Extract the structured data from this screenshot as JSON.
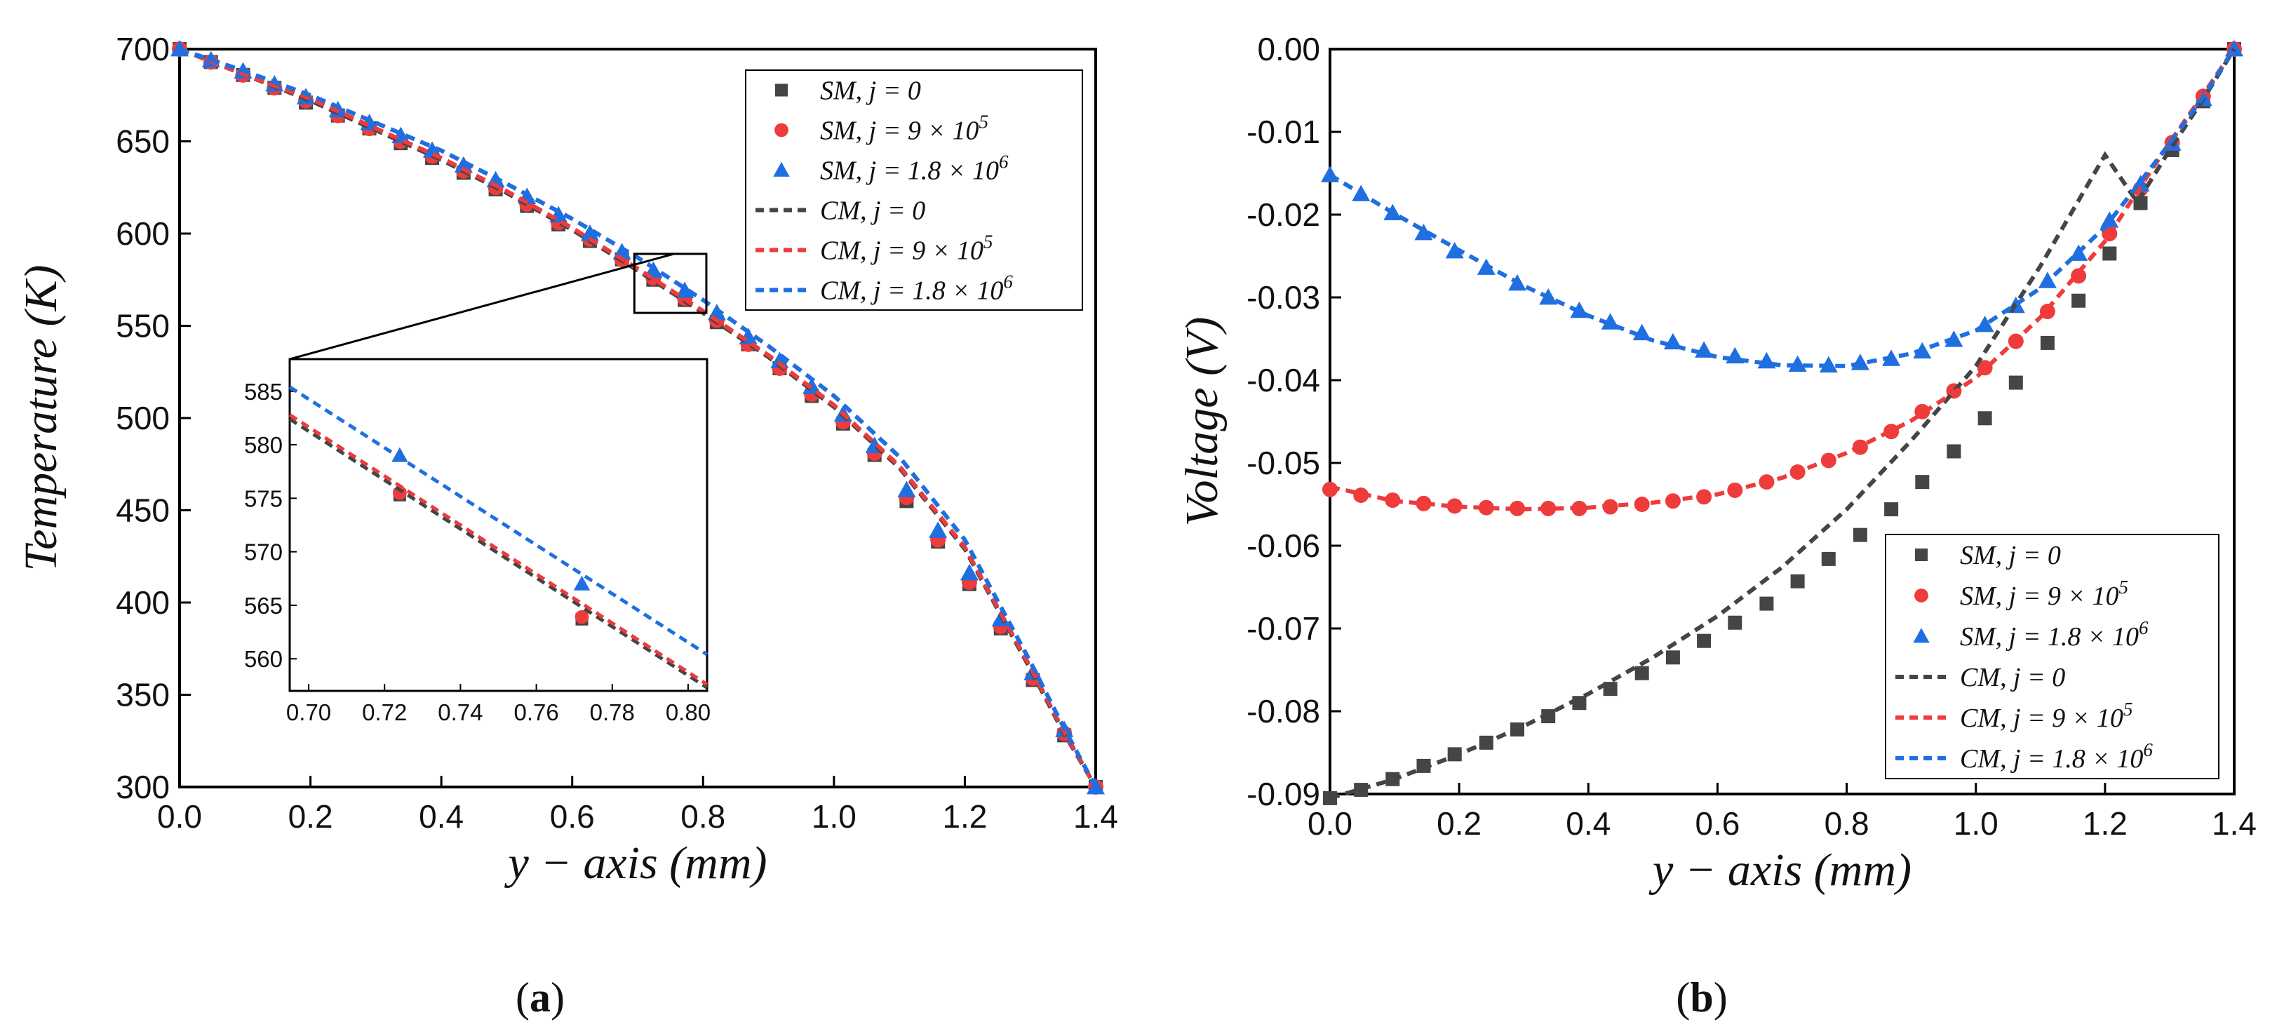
{
  "chart_data": [
    {
      "type": "line",
      "panel": "a",
      "caption": "a",
      "xlabel": "y − axis (mm)",
      "ylabel": "Temperature (K)",
      "xlim": [
        0.0,
        1.4
      ],
      "ylim": [
        300,
        700
      ],
      "xticks": [
        "0.0",
        "0.2",
        "0.4",
        "0.6",
        "0.8",
        "1.0",
        "1.2",
        "1.4"
      ],
      "yticks": [
        "300",
        "350",
        "400",
        "450",
        "500",
        "550",
        "600",
        "650",
        "700"
      ],
      "legend_position": "top-right",
      "legend": [
        "SM, j = 0",
        "SM, j = 9 × 10⁵",
        "SM, j = 1.8 × 10⁶",
        "CM, j = 0",
        "CM, j = 9 × 10⁵",
        "CM, j = 1.8 × 10⁶"
      ],
      "series": [
        {
          "name": "SM, j = 0",
          "style": "marker-square",
          "color": "#454545",
          "x": [
            0.0,
            0.048,
            0.097,
            0.145,
            0.193,
            0.242,
            0.29,
            0.338,
            0.386,
            0.434,
            0.483,
            0.531,
            0.579,
            0.627,
            0.676,
            0.724,
            0.772,
            0.821,
            0.869,
            0.917,
            0.966,
            1.014,
            1.062,
            1.111,
            1.159,
            1.207,
            1.255,
            1.304,
            1.352,
            1.4
          ],
          "y": [
            700,
            693,
            686,
            679,
            671,
            664,
            657,
            649,
            641,
            633,
            624,
            615,
            605,
            596,
            586,
            575,
            564,
            552,
            540,
            527,
            512,
            497,
            480,
            455,
            433,
            410,
            386,
            358,
            328,
            300
          ]
        },
        {
          "name": "SM, j = 9 × 10⁵",
          "style": "marker-circle",
          "color": "#ee3b3b",
          "x": [
            0.0,
            0.048,
            0.097,
            0.145,
            0.193,
            0.242,
            0.29,
            0.338,
            0.386,
            0.434,
            0.483,
            0.531,
            0.579,
            0.627,
            0.676,
            0.724,
            0.772,
            0.821,
            0.869,
            0.917,
            0.966,
            1.014,
            1.062,
            1.111,
            1.159,
            1.207,
            1.255,
            1.304,
            1.352,
            1.4
          ],
          "y": [
            700,
            693,
            686,
            679,
            672,
            664,
            657,
            650,
            642,
            634,
            625,
            616,
            606,
            597,
            586,
            576,
            565,
            553,
            540,
            527,
            513,
            498,
            481,
            457,
            434,
            411,
            387,
            359,
            329,
            300
          ]
        },
        {
          "name": "SM, j = 1.8 × 10⁶",
          "style": "marker-triangle",
          "color": "#1f6fe0",
          "x": [
            0.0,
            0.048,
            0.097,
            0.145,
            0.193,
            0.242,
            0.29,
            0.338,
            0.386,
            0.434,
            0.483,
            0.531,
            0.579,
            0.627,
            0.676,
            0.724,
            0.772,
            0.821,
            0.869,
            0.917,
            0.966,
            1.014,
            1.062,
            1.111,
            1.159,
            1.207,
            1.255,
            1.304,
            1.352,
            1.4
          ],
          "y": [
            700,
            694,
            688,
            681,
            674,
            667,
            660,
            653,
            645,
            637,
            629,
            620,
            610,
            600,
            590,
            580,
            569,
            557,
            544,
            531,
            517,
            502,
            485,
            461,
            439,
            416,
            391,
            362,
            331,
            300
          ]
        },
        {
          "name": "CM, j = 0",
          "style": "dashed",
          "color": "#454545",
          "x": [
            0.0,
            0.1,
            0.2,
            0.3,
            0.4,
            0.5,
            0.6,
            0.7,
            0.8,
            0.9,
            1.0,
            1.1,
            1.2,
            1.3,
            1.35,
            1.4
          ],
          "y": [
            700,
            686,
            672,
            656,
            640,
            622,
            602,
            580,
            557,
            533,
            506,
            473,
            429,
            364,
            330,
            300
          ]
        },
        {
          "name": "CM, j = 9 × 10⁵",
          "style": "dashed",
          "color": "#ee3b3b",
          "x": [
            0.0,
            0.1,
            0.2,
            0.3,
            0.4,
            0.5,
            0.6,
            0.7,
            0.8,
            0.9,
            1.0,
            1.1,
            1.2,
            1.3,
            1.35,
            1.4
          ],
          "y": [
            700,
            686,
            673,
            657,
            641,
            623,
            603,
            581,
            558,
            534,
            507,
            474,
            430,
            365,
            331,
            300
          ]
        },
        {
          "name": "CM, j = 1.8 × 10⁶",
          "style": "dashed",
          "color": "#1f6fe0",
          "x": [
            0.0,
            0.1,
            0.2,
            0.3,
            0.4,
            0.5,
            0.6,
            0.7,
            0.8,
            0.9,
            1.0,
            1.1,
            1.2,
            1.3,
            1.35,
            1.4
          ],
          "y": [
            700,
            688,
            675,
            660,
            645,
            627,
            608,
            587,
            564,
            539,
            512,
            479,
            434,
            368,
            333,
            300
          ]
        }
      ],
      "zoom_box": {
        "xlim": [
          0.695,
          0.805
        ],
        "ylim": [
          557,
          589
        ]
      },
      "inset": {
        "xlim": [
          0.695,
          0.805
        ],
        "ylim": [
          557,
          588
        ],
        "xticks": [
          "0.70",
          "0.72",
          "0.74",
          "0.76",
          "0.78",
          "0.80"
        ],
        "yticks": [
          "560",
          "565",
          "570",
          "575",
          "580",
          "585"
        ],
        "series": [
          {
            "name": "SM, j = 0",
            "style": "marker-square",
            "color": "#454545",
            "x": [
              0.724,
              0.772
            ],
            "y": [
              575.3,
              563.7
            ]
          },
          {
            "name": "SM, j = 9 × 10⁵",
            "style": "marker-circle",
            "color": "#ee3b3b",
            "x": [
              0.724,
              0.772
            ],
            "y": [
              575.5,
              563.9
            ]
          },
          {
            "name": "SM, j = 1.8 × 10⁶",
            "style": "marker-triangle",
            "color": "#1f6fe0",
            "x": [
              0.724,
              0.772
            ],
            "y": [
              579.0,
              567.0
            ]
          },
          {
            "name": "CM, j = 0",
            "style": "dashed",
            "color": "#454545",
            "x": [
              0.695,
              0.805
            ],
            "y": [
              582.4,
              557.3
            ]
          },
          {
            "name": "CM, j = 9 × 10⁵",
            "style": "dashed",
            "color": "#ee3b3b",
            "x": [
              0.695,
              0.805
            ],
            "y": [
              582.8,
              557.6
            ]
          },
          {
            "name": "CM, j = 1.8 × 10⁶",
            "style": "dashed",
            "color": "#1f6fe0",
            "x": [
              0.695,
              0.805
            ],
            "y": [
              585.4,
              560.4
            ]
          }
        ]
      }
    },
    {
      "type": "line",
      "panel": "b",
      "caption": "b",
      "xlabel": "y − axis (mm)",
      "ylabel": "Voltage (V)",
      "xlim": [
        0.0,
        1.4
      ],
      "ylim": [
        -0.09,
        0.0
      ],
      "xticks": [
        "0.0",
        "0.2",
        "0.4",
        "0.6",
        "0.8",
        "1.0",
        "1.2",
        "1.4"
      ],
      "yticks": [
        "-0.09",
        "-0.08",
        "-0.07",
        "-0.06",
        "-0.05",
        "-0.04",
        "-0.03",
        "-0.02",
        "-0.01",
        "0.00"
      ],
      "legend_position": "bottom-right",
      "legend": [
        "SM, j = 0",
        "SM, j = 9 × 10⁵",
        "SM, j = 1.8 × 10⁶",
        "CM, j = 0",
        "CM, j = 9 × 10⁵",
        "CM, j = 1.8 × 10⁶"
      ],
      "series": [
        {
          "name": "SM, j = 0",
          "style": "marker-square",
          "color": "#454545",
          "x": [
            0.0,
            0.048,
            0.097,
            0.145,
            0.193,
            0.242,
            0.29,
            0.338,
            0.386,
            0.434,
            0.483,
            0.531,
            0.579,
            0.627,
            0.676,
            0.724,
            0.772,
            0.821,
            0.869,
            0.917,
            0.966,
            1.014,
            1.062,
            1.111,
            1.159,
            1.207,
            1.255,
            1.304,
            1.352,
            1.4
          ],
          "y": [
            -0.0905,
            -0.0895,
            -0.0882,
            -0.0866,
            -0.0852,
            -0.0838,
            -0.0822,
            -0.0806,
            -0.079,
            -0.0773,
            -0.0754,
            -0.0735,
            -0.0715,
            -0.0693,
            -0.067,
            -0.0643,
            -0.0616,
            -0.0587,
            -0.0556,
            -0.0523,
            -0.0486,
            -0.0446,
            -0.0403,
            -0.0355,
            -0.0304,
            -0.0247,
            -0.0186,
            -0.0122,
            -0.0063,
            0.0
          ]
        },
        {
          "name": "SM, j = 9 × 10⁵",
          "style": "marker-circle",
          "color": "#ee3b3b",
          "x": [
            0.0,
            0.048,
            0.097,
            0.145,
            0.193,
            0.242,
            0.29,
            0.338,
            0.386,
            0.434,
            0.483,
            0.531,
            0.579,
            0.627,
            0.676,
            0.724,
            0.772,
            0.821,
            0.869,
            0.917,
            0.966,
            1.014,
            1.062,
            1.111,
            1.159,
            1.207,
            1.255,
            1.304,
            1.352,
            1.4
          ],
          "y": [
            -0.0532,
            -0.0539,
            -0.0545,
            -0.0549,
            -0.0552,
            -0.0554,
            -0.0555,
            -0.0555,
            -0.0555,
            -0.0553,
            -0.055,
            -0.0546,
            -0.0541,
            -0.0533,
            -0.0523,
            -0.0511,
            -0.0497,
            -0.0481,
            -0.0462,
            -0.0438,
            -0.0413,
            -0.0385,
            -0.0353,
            -0.0317,
            -0.0274,
            -0.0223,
            -0.0169,
            -0.0113,
            -0.0057,
            0.0
          ]
        },
        {
          "name": "SM, j = 1.8 × 10⁶",
          "style": "marker-triangle",
          "color": "#1f6fe0",
          "x": [
            0.0,
            0.048,
            0.097,
            0.145,
            0.193,
            0.242,
            0.29,
            0.338,
            0.386,
            0.434,
            0.483,
            0.531,
            0.579,
            0.627,
            0.676,
            0.724,
            0.772,
            0.821,
            0.869,
            0.917,
            0.966,
            1.014,
            1.062,
            1.111,
            1.159,
            1.207,
            1.255,
            1.304,
            1.352,
            1.4
          ],
          "y": [
            -0.0152,
            -0.0175,
            -0.0198,
            -0.0222,
            -0.0244,
            -0.0264,
            -0.0283,
            -0.03,
            -0.0316,
            -0.033,
            -0.0343,
            -0.0354,
            -0.0364,
            -0.0371,
            -0.0377,
            -0.0381,
            -0.0382,
            -0.0379,
            -0.0374,
            -0.0365,
            -0.0351,
            -0.0333,
            -0.031,
            -0.028,
            -0.0247,
            -0.0207,
            -0.0163,
            -0.0114,
            -0.006,
            0.0
          ]
        },
        {
          "name": "CM, j = 0",
          "style": "dashed",
          "color": "#454545",
          "x": [
            0.0,
            0.1,
            0.2,
            0.3,
            0.4,
            0.5,
            0.6,
            0.7,
            0.8,
            0.9,
            1.0,
            1.1,
            1.2,
            1.25,
            1.3,
            1.35,
            1.4
          ],
          "y": [
            -0.0905,
            -0.0882,
            -0.0852,
            -0.0818,
            -0.0779,
            -0.0735,
            -0.0685,
            -0.0626,
            -0.0556,
            -0.0473,
            -0.0383,
            -0.0262,
            -0.0128,
            -0.0185,
            -0.0122,
            -0.0063,
            0.0
          ]
        },
        {
          "name": "CM, j = 9 × 10⁵",
          "style": "dashed",
          "color": "#ee3b3b",
          "x": [
            0.0,
            0.1,
            0.2,
            0.3,
            0.4,
            0.5,
            0.6,
            0.7,
            0.8,
            0.9,
            1.0,
            1.1,
            1.2,
            1.25,
            1.3,
            1.35,
            1.4
          ],
          "y": [
            -0.0529,
            -0.0546,
            -0.0553,
            -0.0556,
            -0.0554,
            -0.0548,
            -0.0538,
            -0.0518,
            -0.0488,
            -0.0449,
            -0.0397,
            -0.0324,
            -0.0232,
            -0.0172,
            -0.0113,
            -0.0057,
            0.0
          ]
        },
        {
          "name": "CM, j = 1.8 × 10⁶",
          "style": "dashed",
          "color": "#1f6fe0",
          "x": [
            0.0,
            0.1,
            0.2,
            0.3,
            0.4,
            0.5,
            0.6,
            0.7,
            0.8,
            0.9,
            1.0,
            1.1,
            1.2,
            1.25,
            1.3,
            1.35,
            1.4
          ],
          "y": [
            -0.0152,
            -0.0199,
            -0.0243,
            -0.0286,
            -0.0322,
            -0.0352,
            -0.0372,
            -0.0382,
            -0.0383,
            -0.0368,
            -0.034,
            -0.0289,
            -0.0215,
            -0.0165,
            -0.0114,
            -0.006,
            0.0
          ]
        }
      ]
    }
  ]
}
